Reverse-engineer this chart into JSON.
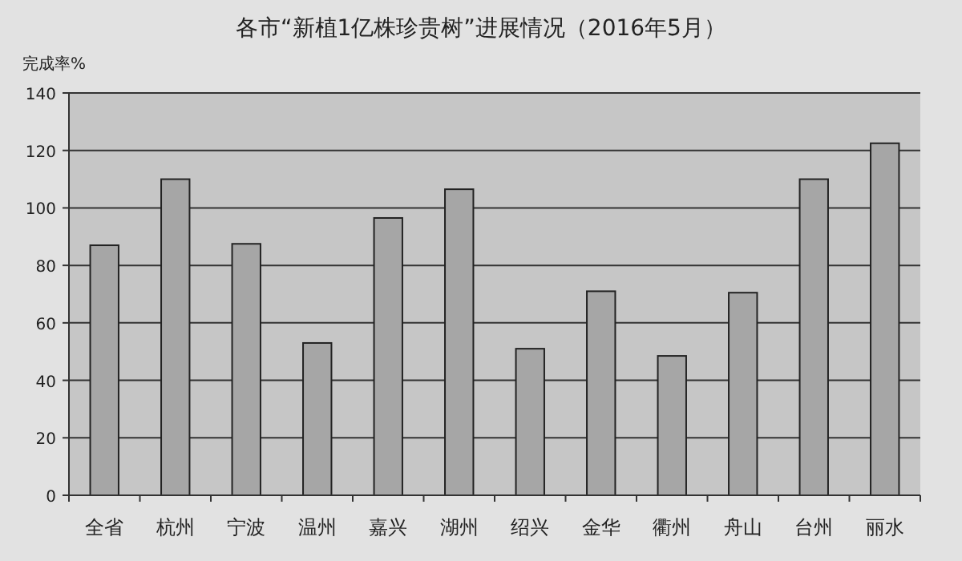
{
  "chart_data": {
    "type": "bar",
    "title": "各市“新植1亿株珍贵树”进展情况（2016年5月）",
    "ylabel": "完成率%",
    "categories": [
      "全省",
      "杭州",
      "宁波",
      "温州",
      "嘉兴",
      "湖州",
      "绍兴",
      "金华",
      "衢州",
      "舟山",
      "台州",
      "丽水"
    ],
    "values": [
      87,
      110,
      87.5,
      53,
      96.5,
      106.5,
      51,
      71,
      48.5,
      70.5,
      110,
      122.5
    ],
    "color": "#a6a6a6",
    "ylim": [
      0,
      140
    ],
    "yticks": [
      0,
      20,
      40,
      60,
      80,
      100,
      120,
      140
    ],
    "grid": "y"
  }
}
